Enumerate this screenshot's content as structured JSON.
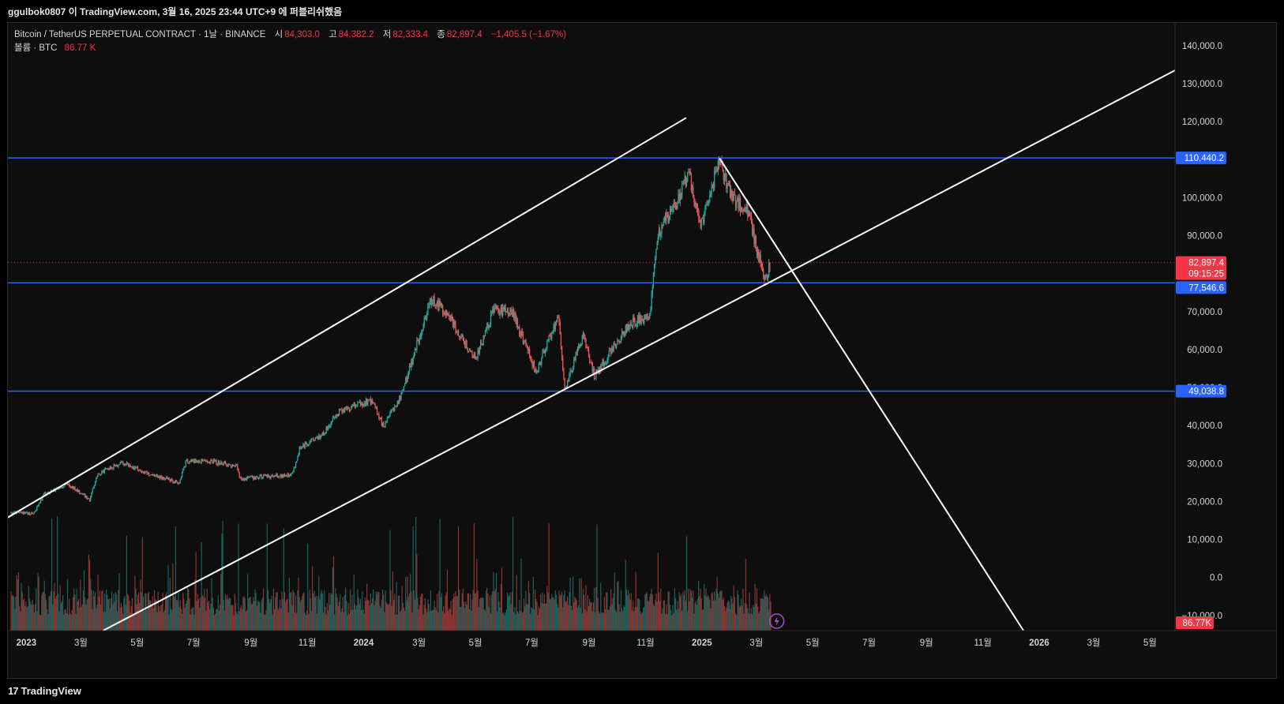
{
  "header": {
    "attribution": "ggulbok0807 이 TradingView.com, 3월 16, 2025 23:44 UTC+9 에 퍼블리쉬했음"
  },
  "legend": {
    "symbol": "Bitcoin / TetherUS PERPETUAL CONTRACT · 1날 · BINANCE",
    "open_label": "시",
    "open_value": "84,303.0",
    "high_label": "고",
    "high_value": "84,382.2",
    "low_label": "저",
    "low_value": "82,333.4",
    "close_label": "종",
    "close_value": "82,897.4",
    "change": "−1,405.5 (−1.67%)",
    "volume_label": "볼륨 · BTC",
    "volume_value": "86.77 K"
  },
  "footer": {
    "brand": "TradingView"
  },
  "colors": {
    "background": "#0e0e0e",
    "up": "#26a69a",
    "down": "#ef5350",
    "level_line": "#2962ff",
    "trend_line": "#ffffff",
    "last_price": "#f23645"
  },
  "chart_data": {
    "type": "candlestick",
    "interval": "1D",
    "y_axis_labels": [
      "140,000.0",
      "130,000.0",
      "120,000.0",
      "110,440.2",
      "100,000.0",
      "90,000.0",
      "82,897.4",
      "77,546.6",
      "70,000.0",
      "60,000.0",
      "50,000.0",
      "49,038.8",
      "40,000.0",
      "30,000.0",
      "20,000.0",
      "10,000.0",
      "0.0",
      "−10,000.0"
    ],
    "y_ticks": [
      140000,
      130000,
      120000,
      100000,
      90000,
      70000,
      60000,
      50000,
      40000,
      30000,
      20000,
      10000,
      0,
      -10000
    ],
    "ylim": [
      -14000,
      146000
    ],
    "x_tick_labels": [
      "2023",
      "3월",
      "5월",
      "7월",
      "9월",
      "11월",
      "2024",
      "3월",
      "5월",
      "7월",
      "9월",
      "11월",
      "2025",
      "3월",
      "5월",
      "7월",
      "9월",
      "11월",
      "2026",
      "3월",
      "5월"
    ],
    "x_tick_dates": [
      "2023-01-01",
      "2023-03-01",
      "2023-05-01",
      "2023-07-01",
      "2023-09-01",
      "2023-11-01",
      "2024-01-01",
      "2024-03-01",
      "2024-05-01",
      "2024-07-01",
      "2024-09-01",
      "2024-11-01",
      "2025-01-01",
      "2025-03-01",
      "2025-05-01",
      "2025-07-01",
      "2025-09-01",
      "2025-11-01",
      "2026-01-01",
      "2026-03-01",
      "2026-05-01"
    ],
    "xlim": [
      "2022-12-12",
      "2026-05-28"
    ],
    "price_path": [
      [
        "2022-12-15",
        17200
      ],
      [
        "2023-01-08",
        16800
      ],
      [
        "2023-01-20",
        22000
      ],
      [
        "2023-02-15",
        24500
      ],
      [
        "2023-03-10",
        20500
      ],
      [
        "2023-03-18",
        27000
      ],
      [
        "2023-04-14",
        30300
      ],
      [
        "2023-05-10",
        27500
      ],
      [
        "2023-06-15",
        25000
      ],
      [
        "2023-06-22",
        30500
      ],
      [
        "2023-07-15",
        30800
      ],
      [
        "2023-08-16",
        29200
      ],
      [
        "2023-08-20",
        26000
      ],
      [
        "2023-09-15",
        26500
      ],
      [
        "2023-10-15",
        27000
      ],
      [
        "2023-10-24",
        34500
      ],
      [
        "2023-11-15",
        37000
      ],
      [
        "2023-12-06",
        44000
      ],
      [
        "2024-01-10",
        46500
      ],
      [
        "2024-01-22",
        39500
      ],
      [
        "2024-02-10",
        48000
      ],
      [
        "2024-02-28",
        62000
      ],
      [
        "2024-03-14",
        73000
      ],
      [
        "2024-04-01",
        69500
      ],
      [
        "2024-04-15",
        63000
      ],
      [
        "2024-05-01",
        57500
      ],
      [
        "2024-05-20",
        70500
      ],
      [
        "2024-06-10",
        69500
      ],
      [
        "2024-07-05",
        54000
      ],
      [
        "2024-07-29",
        69000
      ],
      [
        "2024-08-05",
        49500
      ],
      [
        "2024-08-25",
        64000
      ],
      [
        "2024-09-06",
        53000
      ],
      [
        "2024-10-15",
        67000
      ],
      [
        "2024-11-05",
        69000
      ],
      [
        "2024-11-13",
        90000
      ],
      [
        "2024-12-05",
        99000
      ],
      [
        "2024-12-17",
        107000
      ],
      [
        "2024-12-30",
        92500
      ],
      [
        "2025-01-20",
        109500
      ],
      [
        "2025-02-01",
        100000
      ],
      [
        "2025-02-20",
        96500
      ],
      [
        "2025-03-01",
        86000
      ],
      [
        "2025-03-10",
        78500
      ],
      [
        "2025-03-16",
        82897
      ]
    ],
    "volume": {
      "axis_max": 165000,
      "last_value_label": "86.77K"
    },
    "horizontal_levels": [
      110440.2,
      77546.6,
      49038.8
    ],
    "last_price": 82897.4,
    "countdown": "09:15:25",
    "trend_lines": [
      {
        "from": [
          "2022-12-12",
          15800
        ],
        "to": [
          "2024-12-15",
          121000
        ]
      },
      {
        "from": [
          "2023-03-25",
          -14000
        ],
        "to": [
          "2026-05-28",
          133500
        ]
      },
      {
        "from": [
          "2025-01-20",
          110400
        ],
        "to": [
          "2025-12-15",
          -14000
        ]
      }
    ]
  }
}
